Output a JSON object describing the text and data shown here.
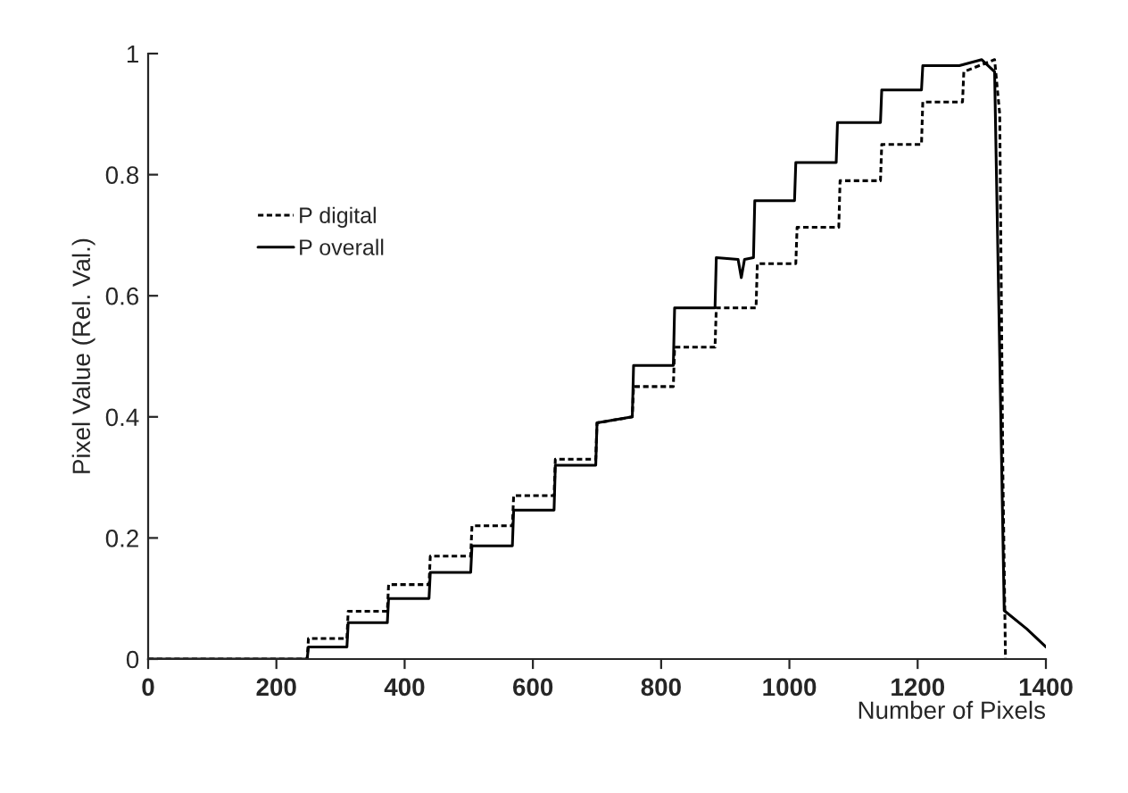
{
  "chart_data": {
    "type": "line",
    "xlabel": "Number of Pixels",
    "ylabel": "Pixel Value (Rel. Val.)",
    "xlim": [
      0,
      1400
    ],
    "xticks": [
      0,
      200,
      400,
      600,
      800,
      1000,
      1200,
      1400
    ],
    "ylim": [
      0,
      1
    ],
    "yticks": [
      0,
      0.2,
      0.4,
      0.6,
      0.8,
      1
    ],
    "legend": "top left",
    "series": [
      {
        "name": "P digital",
        "color": "#000000",
        "line_style": "dashed",
        "x": [
          0,
          248,
          250,
          310,
          312,
          373,
          375,
          438,
          440,
          503,
          505,
          568,
          570,
          633,
          635,
          698,
          700,
          755,
          757,
          819,
          821,
          884,
          886,
          948,
          950,
          1010,
          1012,
          1077,
          1079,
          1142,
          1144,
          1206,
          1208,
          1270,
          1272,
          1320,
          1328,
          1333,
          1337
        ],
        "values": [
          0,
          0,
          0.034,
          0.034,
          0.079,
          0.079,
          0.123,
          0.123,
          0.17,
          0.17,
          0.22,
          0.22,
          0.27,
          0.27,
          0.33,
          0.33,
          0.39,
          0.4,
          0.45,
          0.45,
          0.515,
          0.515,
          0.58,
          0.58,
          0.653,
          0.653,
          0.713,
          0.713,
          0.79,
          0.79,
          0.85,
          0.85,
          0.92,
          0.92,
          0.97,
          0.99,
          0.9,
          0.3,
          0
        ]
      },
      {
        "name": "P overall",
        "color": "#000000",
        "line_style": "solid",
        "x": [
          0,
          248,
          250,
          310,
          312,
          373,
          375,
          438,
          440,
          503,
          505,
          568,
          570,
          633,
          635,
          698,
          700,
          755,
          757,
          819,
          821,
          884,
          886,
          920,
          925,
          930,
          944,
          946,
          1008,
          1010,
          1073,
          1075,
          1142,
          1144,
          1206,
          1208,
          1265,
          1300,
          1320,
          1328,
          1335,
          1370,
          1400
        ],
        "values": [
          0,
          0,
          0.02,
          0.02,
          0.06,
          0.06,
          0.1,
          0.1,
          0.143,
          0.143,
          0.187,
          0.187,
          0.246,
          0.246,
          0.32,
          0.32,
          0.39,
          0.4,
          0.485,
          0.485,
          0.58,
          0.58,
          0.663,
          0.66,
          0.63,
          0.66,
          0.663,
          0.757,
          0.757,
          0.82,
          0.82,
          0.886,
          0.886,
          0.94,
          0.94,
          0.98,
          0.98,
          0.99,
          0.97,
          0.5,
          0.08,
          0.05,
          0.02
        ]
      }
    ]
  }
}
